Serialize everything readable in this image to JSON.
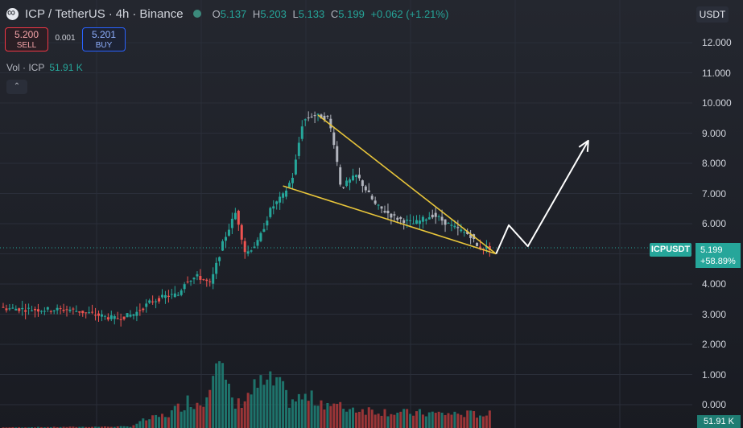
{
  "header": {
    "symbol": "ICP",
    "sep1": "/",
    "quote": "TetherUS",
    "sep2": "·",
    "interval": "4h",
    "sep3": "·",
    "exchange": "Binance"
  },
  "ohlc": {
    "o_label": "O",
    "open": "5.137",
    "h_label": "H",
    "high": "5.203",
    "l_label": "L",
    "low": "5.133",
    "c_label": "C",
    "close": "5.199",
    "change": "+0.062 (+1.21%)"
  },
  "trade": {
    "sell_price": "5.200",
    "sell_label": "SELL",
    "spread": "0.001",
    "buy_price": "5.201",
    "buy_label": "BUY"
  },
  "volume_legend": {
    "label": "Vol · ICP",
    "value": "51.91 K"
  },
  "currency_button": "USDT",
  "price_axis_labels": [
    "12.000",
    "11.000",
    "10.000",
    "9.000",
    "8.000",
    "7.000",
    "6.000",
    "4.000",
    "3.000",
    "2.000",
    "1.000",
    "0.000"
  ],
  "last_price": {
    "symbol_tag": "ICPUSDT",
    "price": "5.199",
    "change": "+58.89%"
  },
  "last_volume": "51.91 K",
  "colors": {
    "up": "#26a69a",
    "down": "#ef5350",
    "pattern": "#e8c53a",
    "projection": "#ffffff"
  },
  "chart_data": {
    "type": "candlestick",
    "ylim": [
      0,
      12.5
    ],
    "anchors": [
      [
        0,
        3.2
      ],
      [
        12,
        3.15
      ],
      [
        22,
        3.15
      ],
      [
        29,
        3.0
      ],
      [
        36,
        2.85
      ],
      [
        42,
        3.0
      ],
      [
        47,
        3.4
      ],
      [
        52,
        3.6
      ],
      [
        56,
        3.65
      ],
      [
        58,
        4.1
      ],
      [
        62,
        4.25
      ],
      [
        66,
        4.0
      ],
      [
        70,
        5.4
      ],
      [
        74,
        6.4
      ],
      [
        77,
        5.0
      ],
      [
        81,
        5.4
      ],
      [
        85,
        6.5
      ],
      [
        89,
        6.95
      ],
      [
        92,
        7.6
      ],
      [
        95,
        9.4
      ],
      [
        98,
        9.6
      ],
      [
        103,
        9.5
      ],
      [
        105,
        8.6
      ],
      [
        107,
        7.2
      ],
      [
        112,
        7.6
      ],
      [
        118,
        6.6
      ],
      [
        124,
        6.2
      ],
      [
        130,
        6.0
      ],
      [
        136,
        6.3
      ],
      [
        142,
        5.9
      ],
      [
        148,
        5.6
      ],
      [
        150,
        5.2
      ],
      [
        153,
        5.199
      ]
    ],
    "volume_shape": [
      [
        0,
        0.02
      ],
      [
        40,
        0.05
      ],
      [
        44,
        0.25
      ],
      [
        52,
        0.45
      ],
      [
        58,
        0.9
      ],
      [
        63,
        0.8
      ],
      [
        67,
        2.8
      ],
      [
        70,
        1.4
      ],
      [
        73,
        0.7
      ],
      [
        80,
        1.4
      ],
      [
        86,
        1.5
      ],
      [
        90,
        0.9
      ],
      [
        95,
        1.0
      ],
      [
        100,
        0.9
      ],
      [
        105,
        0.7
      ],
      [
        115,
        0.6
      ],
      [
        125,
        0.5
      ],
      [
        153,
        0.45
      ]
    ],
    "pattern": {
      "name": "falling wedge",
      "upper_line": {
        "from": [
          99,
          9.6
        ],
        "to": [
          155,
          5.0
        ]
      },
      "lower_line": {
        "from": [
          88,
          7.25
        ],
        "to": [
          155,
          5.0
        ]
      }
    },
    "projection": [
      [
        155,
        5.0
      ],
      [
        159,
        5.95
      ],
      [
        165,
        5.25
      ],
      [
        184,
        8.75
      ]
    ]
  }
}
